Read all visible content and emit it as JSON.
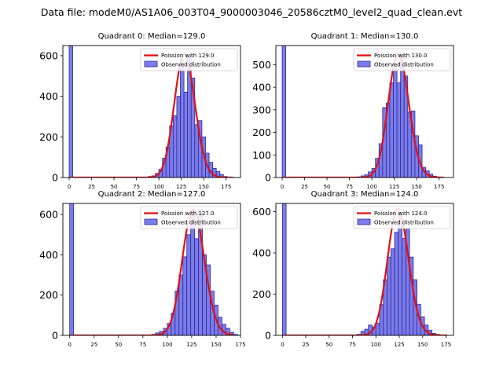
{
  "figure_title": "Data file: modeM0/AS1A06_003T04_9000003046_20586cztM0_level2_quad_clean.evt",
  "colors": {
    "bar_fill": "#7b7bea",
    "bar_edge": "#2a2a9a",
    "fit_line": "#e31010",
    "axis": "#000000"
  },
  "chart_data": [
    {
      "type": "bar",
      "title": "Quadrant 0: Median=129.0",
      "xlabel": "",
      "ylabel": "",
      "xlim": [
        -7,
        191
      ],
      "ylim": [
        0,
        650
      ],
      "xticks": [
        0,
        25,
        50,
        75,
        100,
        125,
        150,
        175
      ],
      "yticks": [
        0,
        200,
        400,
        600
      ],
      "bin_width": 4,
      "bars": {
        "x": [
          0,
          80,
          84,
          88,
          92,
          96,
          100,
          104,
          108,
          112,
          116,
          120,
          124,
          128,
          132,
          136,
          140,
          144,
          148,
          152,
          156,
          160,
          164,
          168,
          172,
          176,
          180,
          184
        ],
        "values": [
          650,
          1,
          2,
          5,
          8,
          20,
          40,
          95,
          150,
          255,
          305,
          400,
          580,
          420,
          600,
          490,
          260,
          280,
          200,
          120,
          75,
          45,
          30,
          15,
          5,
          2,
          1,
          0
        ]
      },
      "fit": {
        "mean": 129.0,
        "peak": 610,
        "x_range": [
          1,
          182
        ]
      },
      "legend": {
        "position": "top-right",
        "line_label": "Poission with 129.0",
        "bar_label": "Observed distribution"
      }
    },
    {
      "type": "bar",
      "title": "Quadrant 1: Median=130.0",
      "xlabel": "",
      "ylabel": "",
      "xlim": [
        -7,
        191
      ],
      "ylim": [
        0,
        585
      ],
      "xticks": [
        0,
        25,
        50,
        75,
        100,
        125,
        150,
        175
      ],
      "yticks": [
        0,
        100,
        200,
        300,
        400,
        500
      ],
      "bin_width": 4,
      "bars": {
        "x": [
          0,
          80,
          84,
          88,
          92,
          96,
          100,
          104,
          108,
          112,
          116,
          120,
          124,
          128,
          132,
          136,
          140,
          144,
          148,
          152,
          156,
          160,
          164,
          168,
          172,
          176,
          180
        ],
        "values": [
          585,
          1,
          3,
          7,
          12,
          25,
          40,
          85,
          150,
          310,
          330,
          420,
          500,
          420,
          550,
          450,
          290,
          295,
          185,
          145,
          45,
          30,
          15,
          6,
          2,
          1,
          0
        ]
      },
      "fit": {
        "mean": 130.0,
        "peak": 550,
        "x_range": [
          1,
          180
        ]
      },
      "legend": {
        "position": "top-right",
        "line_label": "Poission with 130.0",
        "bar_label": "Observed distribution"
      }
    },
    {
      "type": "bar",
      "title": "Quadrant 2: Median=127.0",
      "xlabel": "",
      "ylabel": "",
      "xlim": [
        -7,
        175
      ],
      "ylim": [
        0,
        655
      ],
      "xticks": [
        0,
        25,
        50,
        75,
        100,
        125,
        150,
        175
      ],
      "yticks": [
        0,
        200,
        400,
        600
      ],
      "bin_width": 4,
      "bars": {
        "x": [
          0,
          80,
          84,
          88,
          92,
          96,
          100,
          104,
          108,
          112,
          116,
          120,
          124,
          128,
          132,
          136,
          140,
          144,
          148,
          152,
          156,
          160,
          164,
          168
        ],
        "values": [
          655,
          1,
          5,
          12,
          20,
          35,
          60,
          110,
          220,
          300,
          390,
          500,
          620,
          480,
          625,
          400,
          350,
          220,
          150,
          90,
          55,
          35,
          15,
          5
        ]
      },
      "fit": {
        "mean": 127.0,
        "peak": 625,
        "x_range": [
          1,
          168
        ]
      },
      "legend": {
        "position": "top-right",
        "line_label": "Poission with 127.0",
        "bar_label": "Observed distribution"
      }
    },
    {
      "type": "bar",
      "title": "Quadrant 3: Median=124.0",
      "xlabel": "",
      "ylabel": "",
      "xlim": [
        -7,
        183
      ],
      "ylim": [
        0,
        640
      ],
      "xticks": [
        0,
        25,
        50,
        75,
        100,
        125,
        150,
        175
      ],
      "yticks": [
        0,
        200,
        400,
        600
      ],
      "bin_width": 4,
      "bars": {
        "x": [
          0,
          80,
          84,
          88,
          92,
          96,
          100,
          104,
          108,
          112,
          116,
          120,
          124,
          128,
          132,
          136,
          140,
          144,
          148,
          152,
          156,
          160,
          164,
          168,
          172,
          176
        ],
        "values": [
          640,
          5,
          20,
          30,
          50,
          40,
          60,
          150,
          270,
          380,
          420,
          500,
          600,
          470,
          520,
          380,
          270,
          150,
          90,
          50,
          25,
          10,
          5,
          2,
          1,
          0
        ]
      },
      "fit": {
        "mean": 124.0,
        "peak": 615,
        "x_range": [
          1,
          176
        ]
      },
      "legend": {
        "position": "top-right",
        "line_label": "Poission with 124.0",
        "bar_label": "Observed distribution"
      }
    }
  ]
}
